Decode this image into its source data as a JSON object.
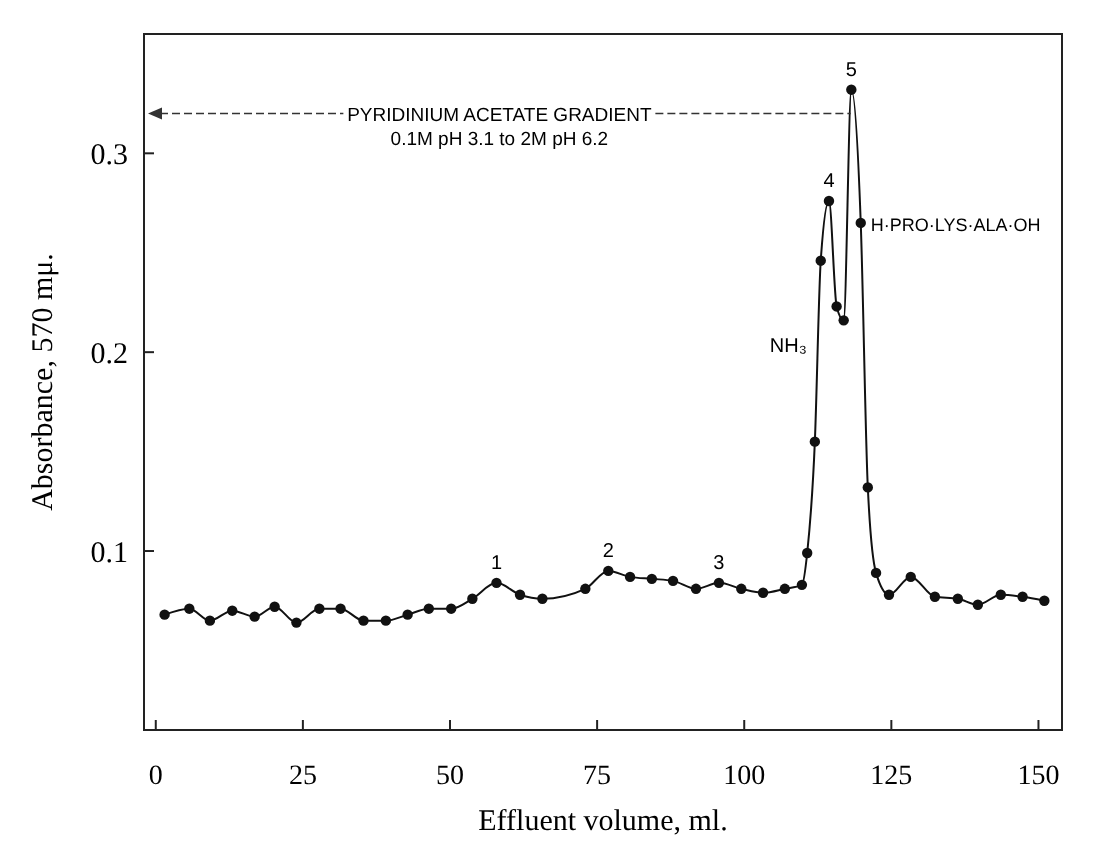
{
  "chart_data": {
    "type": "line",
    "xlabel": "Effluent volume, ml.",
    "ylabel": "Absorbance, 570 mμ.",
    "xlim": [
      -2,
      154
    ],
    "ylim": [
      0.01,
      0.36
    ],
    "xticks": [
      0,
      25,
      50,
      75,
      100,
      125,
      150
    ],
    "yticks": [
      0.1,
      0.2,
      0.3
    ],
    "grid": false,
    "marker": "circle",
    "line_style": "solid",
    "series": [
      {
        "color": "#111111",
        "x": [
          1.5,
          5.7,
          9.2,
          13,
          16.8,
          20.2,
          23.9,
          27.8,
          31.4,
          35.3,
          39.1,
          42.8,
          46.4,
          50.2,
          53.8,
          57.9,
          61.9,
          65.7,
          73,
          76.9,
          80.6,
          84.3,
          87.9,
          91.8,
          95.7,
          99.5,
          103.2,
          106.9,
          109.8,
          110.7,
          112,
          113,
          114.4,
          115.7,
          116.9,
          118.2,
          119.8,
          121,
          122.4,
          124.6,
          128.3,
          132.4,
          136.3,
          139.7,
          143.6,
          147.3,
          151
        ],
        "values": [
          0.068,
          0.071,
          0.065,
          0.07,
          0.067,
          0.072,
          0.064,
          0.071,
          0.071,
          0.065,
          0.065,
          0.068,
          0.071,
          0.071,
          0.076,
          0.084,
          0.078,
          0.076,
          0.081,
          0.09,
          0.087,
          0.086,
          0.085,
          0.081,
          0.084,
          0.081,
          0.079,
          0.081,
          0.083,
          0.099,
          0.155,
          0.246,
          0.276,
          0.223,
          0.216,
          0.332,
          0.265,
          0.132,
          0.089,
          0.078,
          0.087,
          0.077,
          0.076,
          0.073,
          0.078,
          0.077,
          0.075
        ]
      }
    ],
    "annotations": [
      {
        "text": "PYRIDINIUM ACETATE GRADIENT",
        "x": 118.1,
        "y": 0.32
      },
      "0.1M pH 3.1 to 2M pH 6.2",
      {
        "text": "1",
        "x": 57.9,
        "y": 0.084
      },
      {
        "text": "2",
        "x": 76.9,
        "y": 0.09
      },
      {
        "text": "3",
        "x": 95.7,
        "y": 0.084
      },
      {
        "text": "4",
        "x": 114.4,
        "y": 0.276
      },
      {
        "text": "5",
        "x": 118.2,
        "y": 0.332
      },
      {
        "text": "NH₃",
        "x": 112,
        "y": 0.2
      },
      {
        "text": "H·PRO·LYS·ALA·OH",
        "x": 119.8,
        "y": 0.265
      }
    ]
  }
}
